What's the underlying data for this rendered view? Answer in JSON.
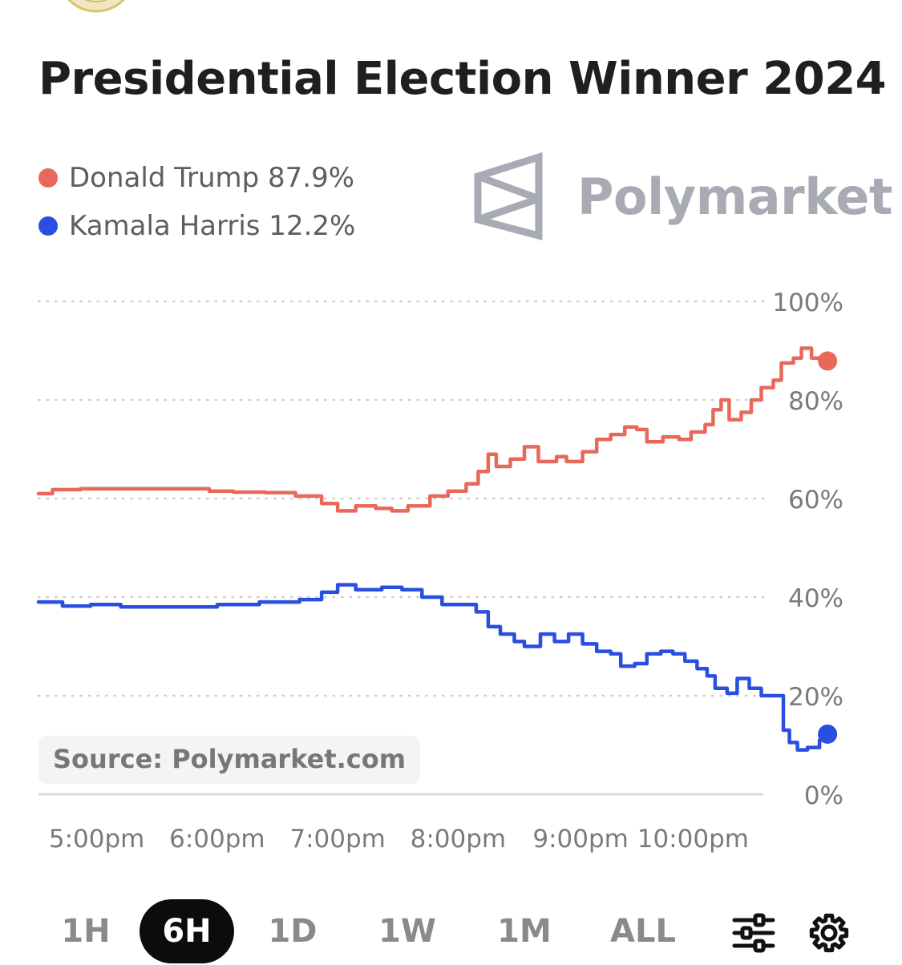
{
  "chart_data": {
    "type": "line",
    "title": "Presidential Election Winner 2024",
    "ylim": [
      0,
      100
    ],
    "y_ticks": [
      "100%",
      "80%",
      "60%",
      "40%",
      "20%",
      "0%"
    ],
    "y_tick_values": [
      100,
      80,
      60,
      40,
      20,
      0
    ],
    "x_ticks": [
      "5:00pm",
      "6:00pm",
      "7:00pm",
      "8:00pm",
      "9:00pm",
      "10:00pm"
    ],
    "x_tick_times": [
      "16:59",
      "17:59",
      "18:59",
      "19:59",
      "21:00",
      "21:56"
    ],
    "x_range_times": [
      "16:30",
      "22:31"
    ],
    "grid": "horizontal dotted",
    "legend": "top-left",
    "series": [
      {
        "name": "Donald Trump",
        "color": "#e8695a",
        "value_label": "87.9%",
        "points": [
          [
            "16:30",
            61
          ],
          [
            "16:37",
            61.8
          ],
          [
            "16:51",
            62
          ],
          [
            "17:41",
            62
          ],
          [
            "17:55",
            61.5
          ],
          [
            "18:07",
            61.3
          ],
          [
            "18:23",
            61.2
          ],
          [
            "18:38",
            60.5
          ],
          [
            "18:51",
            59
          ],
          [
            "18:59",
            57.5
          ],
          [
            "19:08",
            58.5
          ],
          [
            "19:18",
            58
          ],
          [
            "19:26",
            57.5
          ],
          [
            "19:34",
            58.5
          ],
          [
            "19:45",
            60.5
          ],
          [
            "19:54",
            61.5
          ],
          [
            "20:03",
            63
          ],
          [
            "20:09",
            65.5
          ],
          [
            "20:14",
            69
          ],
          [
            "20:18",
            66.5
          ],
          [
            "20:25",
            68
          ],
          [
            "20:32",
            70.5
          ],
          [
            "20:39",
            67.5
          ],
          [
            "20:48",
            68.5
          ],
          [
            "20:53",
            67.5
          ],
          [
            "21:01",
            69.5
          ],
          [
            "21:08",
            72
          ],
          [
            "21:15",
            73
          ],
          [
            "21:22",
            74.5
          ],
          [
            "21:28",
            74
          ],
          [
            "21:33",
            71.5
          ],
          [
            "21:41",
            72.5
          ],
          [
            "21:49",
            72
          ],
          [
            "21:55",
            73.5
          ],
          [
            "22:02",
            75
          ],
          [
            "22:06",
            78
          ],
          [
            "22:10",
            80
          ],
          [
            "22:14",
            76
          ],
          [
            "22:20",
            77.5
          ],
          [
            "22:25",
            80
          ],
          [
            "22:30",
            82.5
          ],
          [
            "22:36",
            84
          ],
          [
            "22:40",
            87.5
          ],
          [
            "22:46",
            88.5
          ],
          [
            "22:50",
            90.5
          ],
          [
            "22:55",
            88.5
          ],
          [
            "23:00",
            88
          ],
          [
            "23:03",
            87.9
          ]
        ]
      },
      {
        "name": "Kamala Harris",
        "color": "#2a4fe0",
        "value_label": "12.2%",
        "points": [
          [
            "16:30",
            39
          ],
          [
            "16:42",
            38.2
          ],
          [
            "16:56",
            38.5
          ],
          [
            "17:11",
            38
          ],
          [
            "17:38",
            38
          ],
          [
            "17:59",
            38.5
          ],
          [
            "18:20",
            39
          ],
          [
            "18:40",
            39.5
          ],
          [
            "18:51",
            41
          ],
          [
            "18:59",
            42.5
          ],
          [
            "19:08",
            41.5
          ],
          [
            "19:21",
            42
          ],
          [
            "19:31",
            41.5
          ],
          [
            "19:41",
            40
          ],
          [
            "19:51",
            38.5
          ],
          [
            "20:03",
            38.5
          ],
          [
            "20:08",
            37
          ],
          [
            "20:14",
            34
          ],
          [
            "20:20",
            32.5
          ],
          [
            "20:27",
            31
          ],
          [
            "20:32",
            30
          ],
          [
            "20:40",
            32.5
          ],
          [
            "20:47",
            31
          ],
          [
            "20:54",
            32.5
          ],
          [
            "21:01",
            30.5
          ],
          [
            "21:08",
            29
          ],
          [
            "21:15",
            28.5
          ],
          [
            "21:20",
            26
          ],
          [
            "21:27",
            26.5
          ],
          [
            "21:33",
            28.5
          ],
          [
            "21:40",
            29
          ],
          [
            "21:46",
            28.5
          ],
          [
            "21:52",
            27
          ],
          [
            "21:58",
            25.5
          ],
          [
            "22:03",
            24
          ],
          [
            "22:07",
            21.5
          ],
          [
            "22:13",
            20.5
          ],
          [
            "22:18",
            23.5
          ],
          [
            "22:24",
            21.5
          ],
          [
            "22:30",
            20
          ],
          [
            "22:37",
            20
          ],
          [
            "22:41",
            13
          ],
          [
            "22:44",
            10.5
          ],
          [
            "22:48",
            9
          ],
          [
            "22:53",
            9.5
          ],
          [
            "22:59",
            11
          ],
          [
            "23:03",
            12.2
          ]
        ]
      }
    ]
  },
  "legend": {
    "items": [
      {
        "label": "Donald Trump 87.9%",
        "color": "#e8695a"
      },
      {
        "label": "Kamala Harris 12.2%",
        "color": "#2a4fe0"
      }
    ]
  },
  "brand": {
    "name": "Polymarket",
    "logo_icon": "polymarket-logo-icon",
    "color": "#a8abb4"
  },
  "source_label": "Source: Polymarket.com",
  "timeframes": {
    "items": [
      "1H",
      "6H",
      "1D",
      "1W",
      "1M",
      "ALL"
    ],
    "selected": "6H"
  },
  "controls": {
    "filter_icon": "sliders-icon",
    "settings_icon": "gear-icon"
  }
}
